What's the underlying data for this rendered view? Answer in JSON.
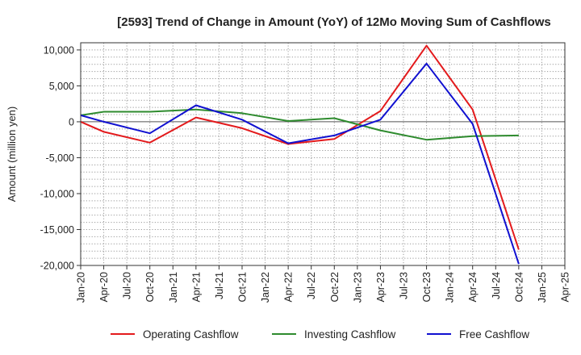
{
  "chart_data": {
    "type": "line",
    "title": "[2593]  Trend of Change in Amount (YoY) of 12Mo Moving Sum of Cashflows",
    "xlabel": "",
    "ylabel": "Amount (million yen)",
    "ylim": [
      -20000,
      11000
    ],
    "yticks": [
      10000,
      5000,
      0,
      -5000,
      -10000,
      -15000,
      -20000
    ],
    "ytick_labels": [
      "10,000",
      "5,000",
      "0",
      "-5,000",
      "-10,000",
      "-15,000",
      "-20,000"
    ],
    "x": [
      "Jan-20",
      "Apr-20",
      "Jul-20",
      "Oct-20",
      "Jan-21",
      "Apr-21",
      "Jul-21",
      "Oct-21",
      "Jan-22",
      "Apr-22",
      "Jul-22",
      "Oct-22",
      "Jan-23",
      "Apr-23",
      "Jul-23",
      "Oct-23",
      "Jan-24",
      "Apr-24",
      "Jul-24",
      "Oct-24",
      "Jan-25",
      "Apr-25"
    ],
    "grid": true,
    "legend_position": "bottom",
    "series": [
      {
        "name": "Operating Cashflow",
        "color": "#e31a1c",
        "values": [
          0,
          -1400,
          null,
          -2900,
          null,
          600,
          null,
          -900,
          null,
          -3100,
          null,
          -2400,
          null,
          1500,
          null,
          10600,
          null,
          1700,
          null,
          -17800,
          null,
          null
        ]
      },
      {
        "name": "Investing Cashflow",
        "color": "#2e8b2e",
        "values": [
          900,
          1400,
          null,
          1400,
          null,
          1700,
          null,
          1200,
          null,
          100,
          null,
          500,
          null,
          -1200,
          null,
          -2500,
          null,
          -2000,
          null,
          -1900,
          null,
          null
        ]
      },
      {
        "name": "Free Cashflow",
        "color": "#1010d0",
        "values": [
          900,
          0,
          null,
          -1600,
          null,
          2300,
          null,
          300,
          null,
          -3000,
          null,
          -1900,
          null,
          300,
          null,
          8100,
          null,
          -300,
          null,
          -19800,
          null,
          null
        ]
      }
    ]
  }
}
